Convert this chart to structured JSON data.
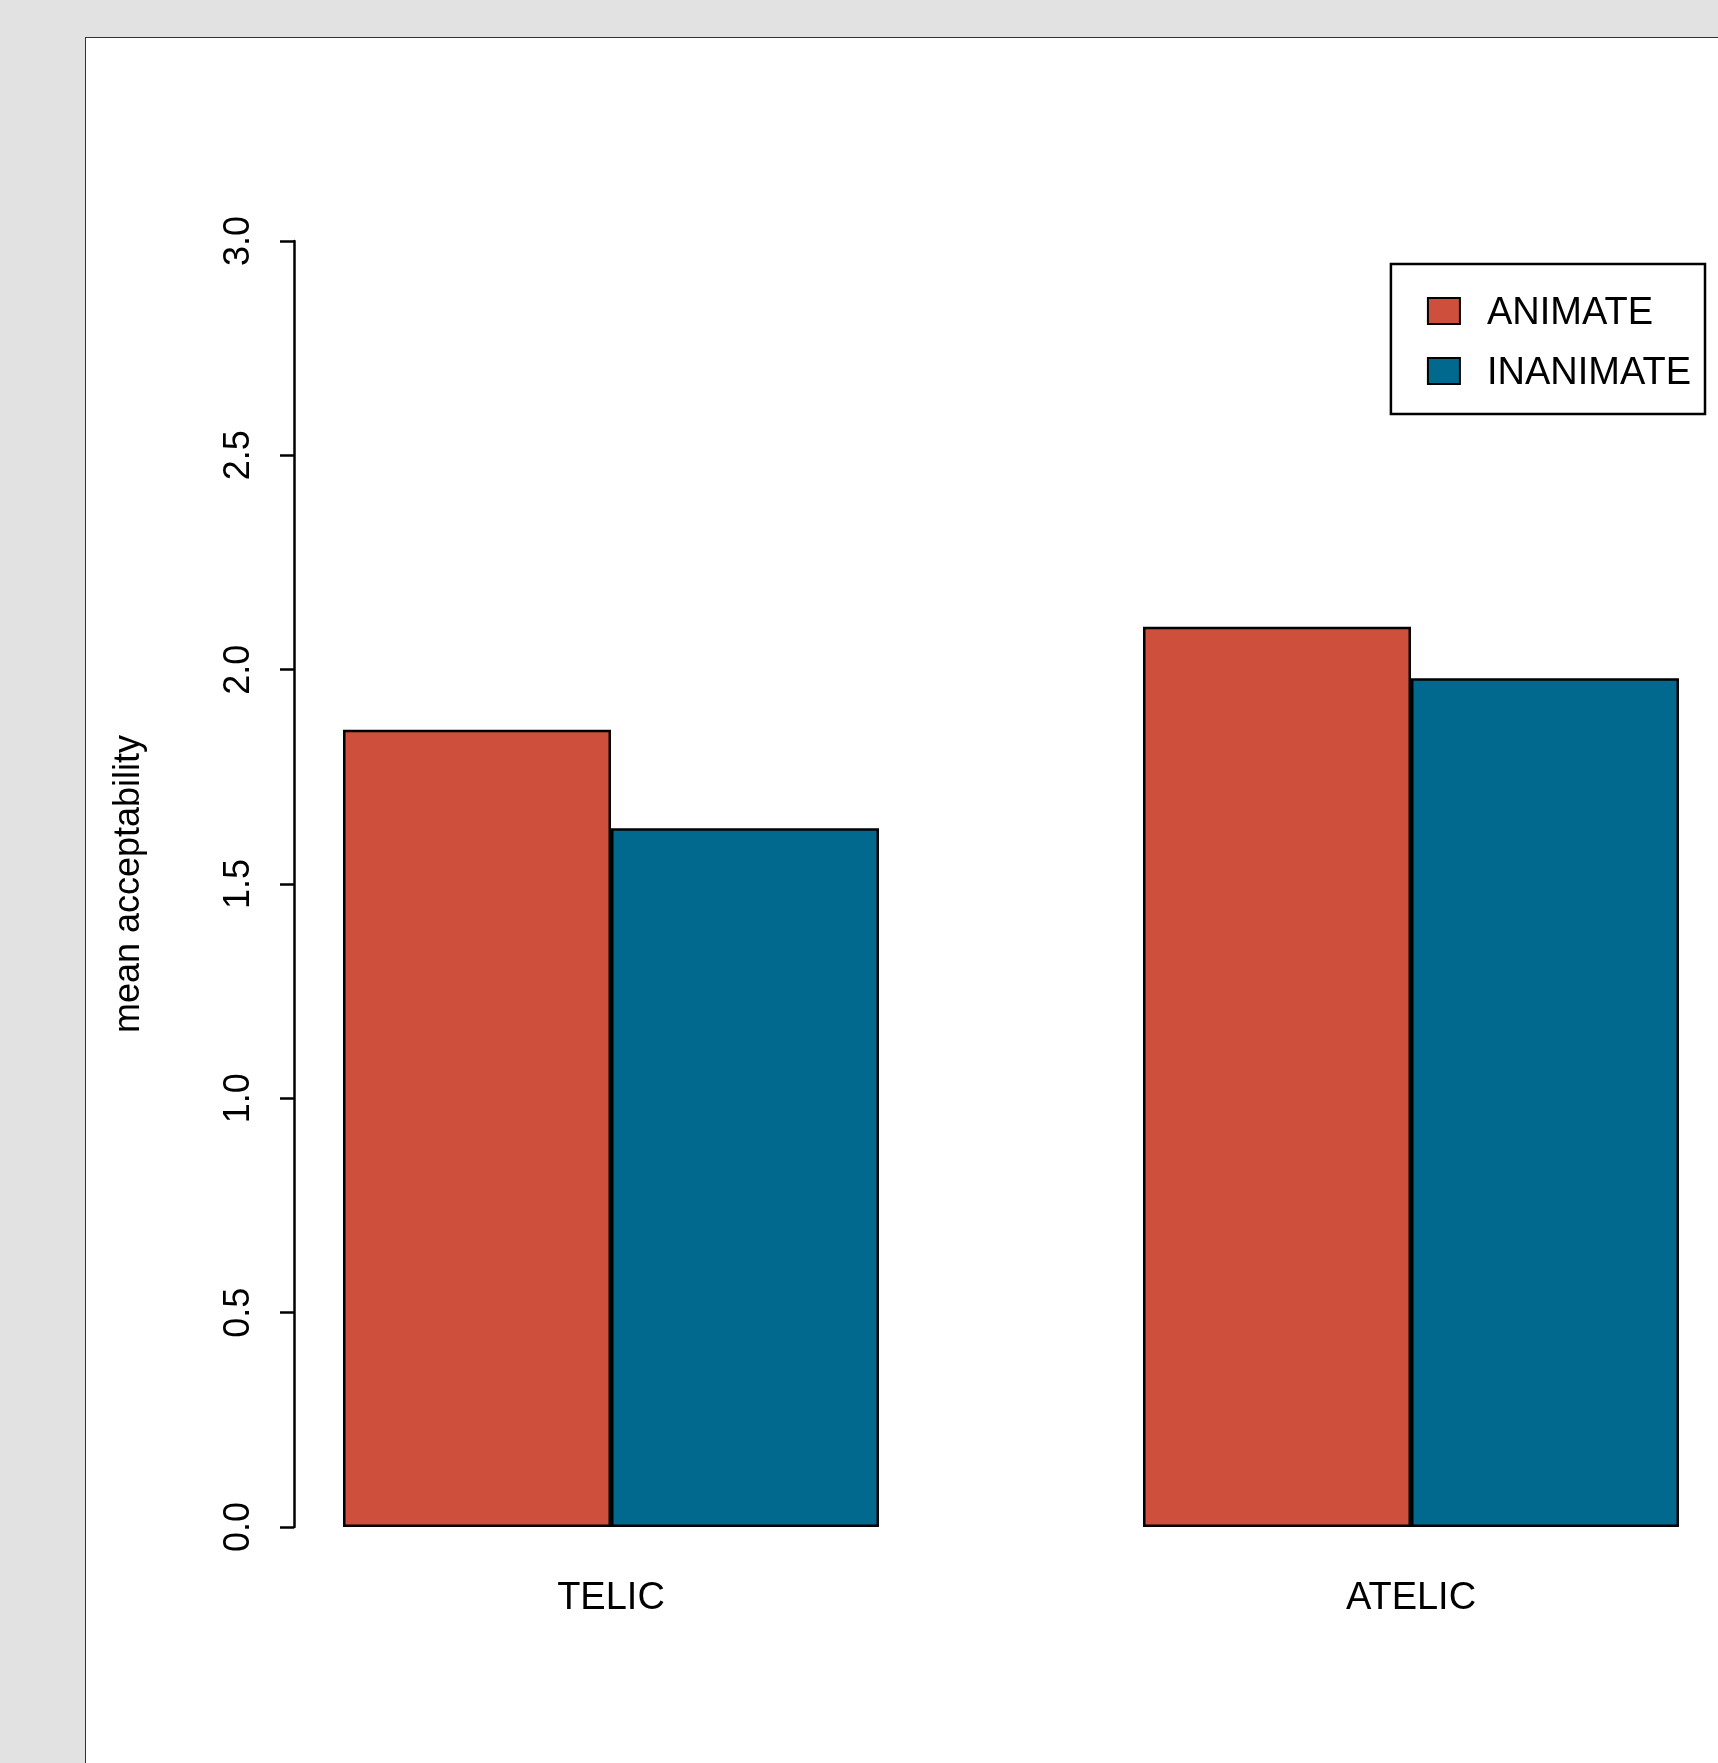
{
  "chart_data": {
    "type": "bar",
    "ylabel": "mean acceptability",
    "categories": [
      "TELIC",
      "ATELIC"
    ],
    "series": [
      {
        "name": "ANIMATE",
        "color": "#cd4f3c",
        "values": [
          1.86,
          2.1
        ]
      },
      {
        "name": "INANIMATE",
        "color": "#00698d",
        "values": [
          1.63,
          1.98
        ]
      }
    ],
    "ylim": [
      0,
      3
    ],
    "yticks": [
      {
        "value": 0,
        "label": "0.0"
      },
      0.5,
      {
        "value": 1,
        "label": "1.0"
      },
      1.5,
      {
        "value": 2,
        "label": "2.0"
      },
      2.5,
      {
        "value": 3,
        "label": "3.0"
      }
    ],
    "legend": "top right",
    "grid": false
  }
}
